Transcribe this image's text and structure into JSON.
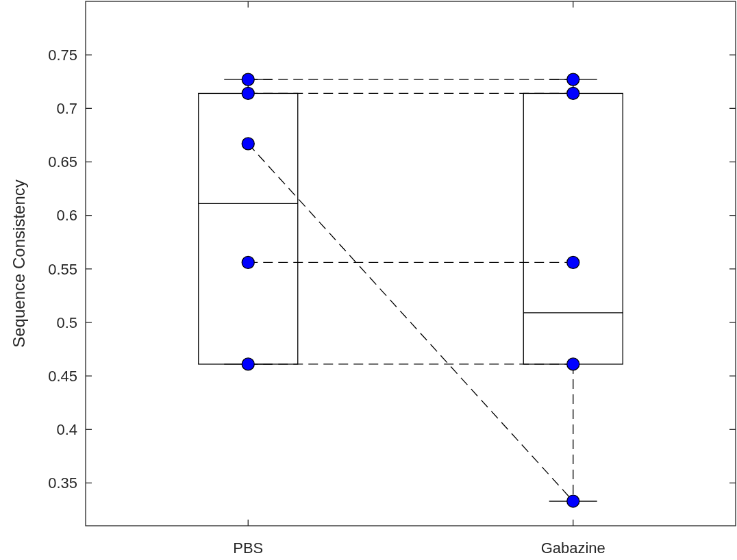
{
  "chart_data": {
    "type": "box",
    "ylabel": "Sequence Consistency",
    "categories": [
      "PBS",
      "Gabazine"
    ],
    "ylim": [
      0.31,
      0.8
    ],
    "yticks": [
      0.35,
      0.4,
      0.45,
      0.5,
      0.55,
      0.6,
      0.65,
      0.7,
      0.75
    ],
    "grid": false,
    "boxes": [
      {
        "low": 0.461,
        "q1": 0.461,
        "median": 0.611,
        "q3": 0.714,
        "high": 0.727
      },
      {
        "low": 0.333,
        "q1": 0.461,
        "median": 0.509,
        "q3": 0.714,
        "high": 0.727
      }
    ],
    "series": [
      {
        "type": "line",
        "x": [
          "PBS",
          "Gabazine"
        ],
        "values": [
          0.727,
          0.727
        ],
        "color": "#000000",
        "line_style": "dashed",
        "marker": "none"
      },
      {
        "type": "line",
        "x": [
          "PBS",
          "Gabazine"
        ],
        "values": [
          0.714,
          0.714
        ],
        "color": "#000000",
        "line_style": "dashed",
        "marker": "none"
      },
      {
        "type": "line",
        "x": [
          "PBS",
          "Gabazine"
        ],
        "values": [
          0.667,
          0.333
        ],
        "color": "#000000",
        "line_style": "dashed",
        "marker": "none"
      },
      {
        "type": "line",
        "x": [
          "PBS",
          "Gabazine"
        ],
        "values": [
          0.556,
          0.556
        ],
        "color": "#000000",
        "line_style": "dashed",
        "marker": "none"
      },
      {
        "type": "line",
        "x": [
          "PBS",
          "Gabazine"
        ],
        "values": [
          0.461,
          0.461
        ],
        "color": "#000000",
        "line_style": "dashed",
        "marker": "none"
      },
      {
        "type": "scatter",
        "x": [
          "PBS",
          "PBS",
          "PBS",
          "PBS",
          "PBS",
          "Gabazine",
          "Gabazine",
          "Gabazine",
          "Gabazine",
          "Gabazine"
        ],
        "values": [
          0.727,
          0.714,
          0.667,
          0.556,
          0.461,
          0.727,
          0.714,
          0.556,
          0.461,
          0.333
        ],
        "color": "#0000ff",
        "marker": "circle"
      }
    ]
  }
}
